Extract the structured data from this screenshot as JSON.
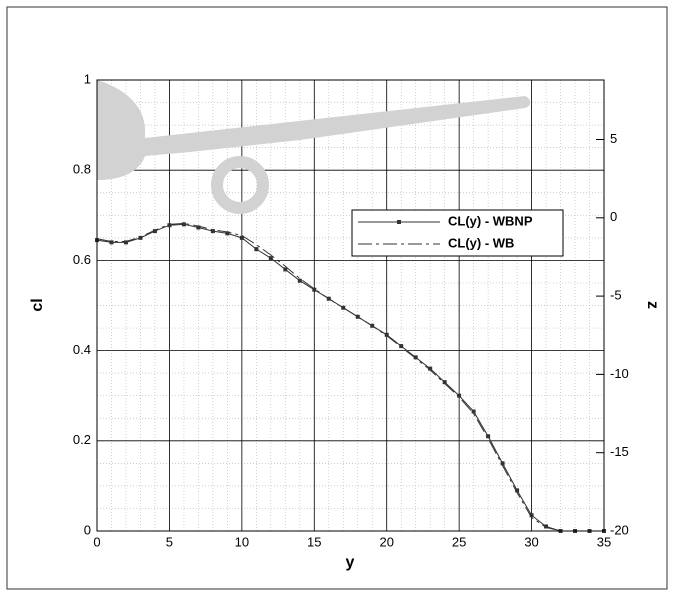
{
  "chart_data": {
    "type": "line",
    "x_label": "y",
    "y_label": "cl",
    "y2_label": "z",
    "x": [
      0,
      1,
      2,
      3,
      4,
      5,
      6,
      7,
      8,
      9,
      10,
      11,
      12,
      13,
      14,
      15,
      16,
      17,
      18,
      19,
      20,
      21,
      22,
      23,
      24,
      25,
      26,
      27,
      28,
      29,
      30,
      31,
      32,
      33,
      34,
      35
    ],
    "series": [
      {
        "name": "CL(y) - WBNP",
        "color": "#333333",
        "line_style": "solid",
        "markers": true,
        "values": [
          0.645,
          0.64,
          0.64,
          0.65,
          0.665,
          0.678,
          0.68,
          0.673,
          0.665,
          0.66,
          0.65,
          0.625,
          0.605,
          0.58,
          0.555,
          0.535,
          0.515,
          0.495,
          0.475,
          0.455,
          0.435,
          0.41,
          0.385,
          0.36,
          0.33,
          0.3,
          0.265,
          0.21,
          0.15,
          0.09,
          0.035,
          0.01,
          0.0,
          0.0,
          0.0,
          0.0
        ]
      },
      {
        "name": "CL(y) - WB",
        "color": "#333333",
        "line_style": "dashdot",
        "markers": false,
        "values": [
          0.648,
          0.642,
          0.642,
          0.652,
          0.667,
          0.68,
          0.682,
          0.676,
          0.668,
          0.663,
          0.655,
          0.635,
          0.612,
          0.587,
          0.56,
          0.537,
          0.515,
          0.495,
          0.475,
          0.455,
          0.433,
          0.408,
          0.383,
          0.357,
          0.327,
          0.297,
          0.26,
          0.205,
          0.145,
          0.085,
          0.03,
          0.008,
          0.0,
          0.0,
          0.0,
          0.0
        ]
      }
    ],
    "xlim": [
      0,
      35
    ],
    "ylim": [
      0,
      1
    ],
    "y2lim": [
      -20,
      8.8
    ],
    "xticks": [
      0,
      5,
      10,
      15,
      20,
      25,
      30,
      35
    ],
    "yticks": [
      0,
      0.2,
      0.4,
      0.6,
      0.8,
      1
    ],
    "y2ticks": [
      5,
      0,
      -5,
      -10,
      -15,
      -20
    ],
    "grid": true,
    "minor_grid": true
  }
}
